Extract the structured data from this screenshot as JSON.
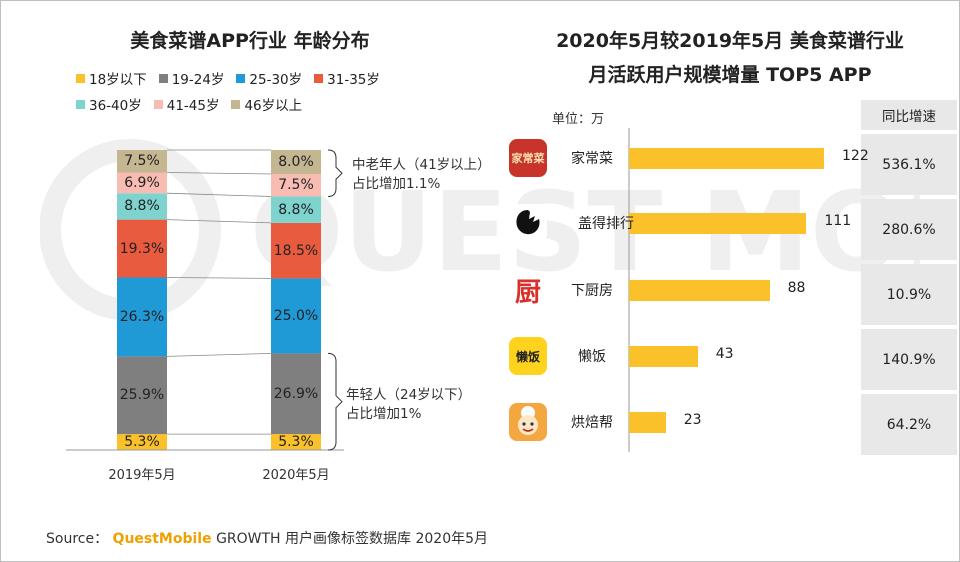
{
  "colors": {
    "age_18_below": "#fbc12a",
    "age_19_24": "#7f7f7f",
    "age_25_30": "#1f9ad6",
    "age_31_35": "#e85b3f",
    "age_36_40": "#7fd3cf",
    "age_41_45": "#f8bcb2",
    "age_46_above": "#c3b690",
    "bar": "#fbc12a",
    "brand": "#f0a000"
  },
  "left_chart": {
    "title": "美食菜谱APP行业 年龄分布",
    "legend": [
      {
        "label": "18岁以下",
        "color": "#fbc12a"
      },
      {
        "label": "19-24岁",
        "color": "#7f7f7f"
      },
      {
        "label": "25-30岁",
        "color": "#1f9ad6"
      },
      {
        "label": "31-35岁",
        "color": "#e85b3f"
      },
      {
        "label": "36-40岁",
        "color": "#7fd3cf"
      },
      {
        "label": "41-45岁",
        "color": "#f8bcb2"
      },
      {
        "label": "46岁以上",
        "color": "#c3b690"
      }
    ],
    "annotation_top": {
      "line1": "中老年人（41岁以上）",
      "line2": "占比增加1.1%"
    },
    "annotation_bottom": {
      "line1": "年轻人（24岁以下）",
      "line2": "占比增加1%"
    }
  },
  "right_chart": {
    "title_line1": "2020年5月较2019年5月 美食菜谱行业",
    "title_line2": "月活跃用户规模增量 TOP5 APP",
    "unit_label": "单位：万",
    "growth_header": "同比增速"
  },
  "chart_data": [
    {
      "type": "bar",
      "stacked": true,
      "title": "美食菜谱APP行业 年龄分布",
      "categories": [
        "2019年5月",
        "2020年5月"
      ],
      "series": [
        {
          "name": "18岁以下",
          "values": [
            5.3,
            5.3
          ],
          "labels": [
            "5.3%",
            "5.3%"
          ]
        },
        {
          "name": "19-24岁",
          "values": [
            25.9,
            26.9
          ],
          "labels": [
            "25.9%",
            "26.9%"
          ]
        },
        {
          "name": "25-30岁",
          "values": [
            26.3,
            25.0
          ],
          "labels": [
            "26.3%",
            "25.0%"
          ]
        },
        {
          "name": "31-35岁",
          "values": [
            19.3,
            18.5
          ],
          "labels": [
            "19.3%",
            "18.5%"
          ]
        },
        {
          "name": "36-40岁",
          "values": [
            8.8,
            8.8
          ],
          "labels": [
            "8.8%",
            "8.8%"
          ]
        },
        {
          "name": "41-45岁",
          "values": [
            6.9,
            7.5
          ],
          "labels": [
            "6.9%",
            "7.5%"
          ]
        },
        {
          "name": "46岁以上",
          "values": [
            7.5,
            8.0
          ],
          "labels": [
            "7.5%",
            "8.0%"
          ]
        }
      ],
      "ylim": [
        0,
        100
      ]
    },
    {
      "type": "bar",
      "orientation": "horizontal",
      "title": "2020年5月较2019年5月 美食菜谱行业 月活跃用户规模增量 TOP5 APP",
      "unit": "万",
      "categories": [
        "家常菜",
        "盖得排行",
        "下厨房",
        "懒饭",
        "烘焙帮"
      ],
      "values": [
        122,
        111,
        88,
        43,
        23
      ],
      "growth": [
        "536.1%",
        "280.6%",
        "10.9%",
        "140.9%",
        "64.2%"
      ],
      "icon_names": [
        "jiachangcai-app-icon",
        "gaide-paihang-app-icon",
        "xiachufang-app-icon",
        "lanfan-app-icon",
        "hongbeibang-app-icon"
      ],
      "icon_texts": [
        "家常菜",
        "",
        "厨",
        "懒饭",
        ""
      ]
    }
  ],
  "source": {
    "prefix": "Source：",
    "brand": "QuestMobile",
    "text": "GROWTH 用户画像标签数据库 2020年5月"
  }
}
